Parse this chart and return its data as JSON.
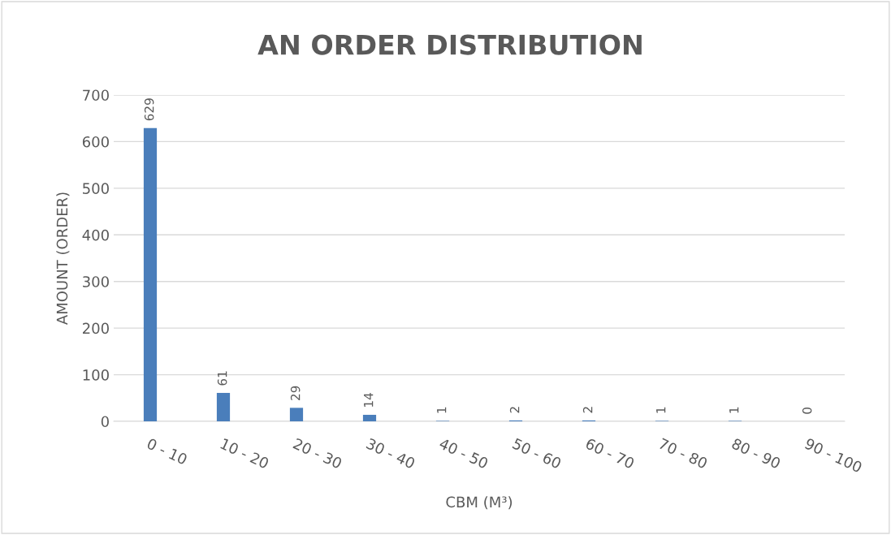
{
  "chart_data": {
    "type": "bar",
    "title": "AN ORDER DISTRIBUTION",
    "xlabel": "CBM (M³)",
    "ylabel": "AMOUNT (ORDER)",
    "categories": [
      "0 - 10",
      "10 - 20",
      "20 - 30",
      "30 - 40",
      "40 - 50",
      "50 - 60",
      "60 - 70",
      "70 - 80",
      "80 - 90",
      "90 - 100"
    ],
    "values": [
      629,
      61,
      29,
      14,
      1,
      2,
      2,
      1,
      1,
      0
    ],
    "color": "#4a7ebb",
    "ylim": [
      0,
      700
    ],
    "yticks": [
      0,
      100,
      200,
      300,
      400,
      500,
      600,
      700
    ],
    "grid": "y",
    "data_labels": true,
    "legend": false
  }
}
